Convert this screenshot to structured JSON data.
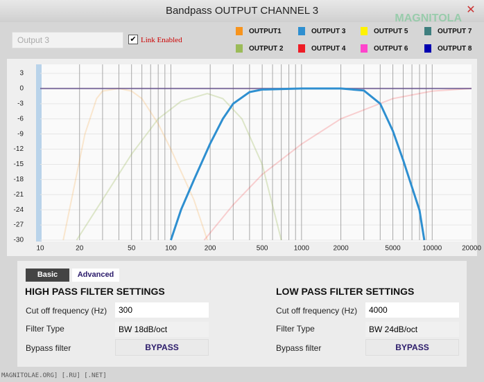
{
  "window": {
    "title": "Bandpass OUTPUT CHANNEL 3",
    "watermark": "MAGNITOLA",
    "footer": "MAGNITOLAE.ORG] [.RU] [.NET]"
  },
  "channel_name": "Output 3",
  "link": {
    "label": "Link Enabled",
    "checked": true
  },
  "chart_data": {
    "type": "line",
    "xscale": "log",
    "grid": true,
    "xlim": [
      10,
      20000
    ],
    "ylim": [
      -30,
      3
    ],
    "xticks": [
      10,
      20,
      50,
      100,
      200,
      500,
      1000,
      2000,
      5000,
      10000,
      20000
    ],
    "xgrid": [
      20,
      30,
      40,
      50,
      60,
      70,
      80,
      90,
      100,
      200,
      300,
      400,
      500,
      600,
      700,
      800,
      900,
      1000,
      2000,
      3000,
      4000,
      5000,
      6000,
      7000,
      8000,
      9000,
      10000
    ],
    "yticks": [
      3,
      0,
      -3,
      -6,
      -9,
      -12,
      -15,
      -18,
      -21,
      -24,
      -27,
      -30
    ],
    "series": [
      {
        "name": "OUTPUT1",
        "color": "#f7941d",
        "opacity": 0.2,
        "x": [
          15,
          18,
          22,
          27,
          30,
          40,
          50,
          60,
          80,
          100,
          150,
          190
        ],
        "values": [
          -30,
          -20,
          -9,
          -2,
          -0.5,
          0,
          -0.5,
          -2,
          -7,
          -12,
          -22,
          -30
        ]
      },
      {
        "name": "OUTPUT 2",
        "color": "#9bbb59",
        "opacity": 0.3,
        "x": [
          19,
          30,
          50,
          80,
          120,
          190,
          250,
          350,
          500,
          700
        ],
        "values": [
          -30,
          -22,
          -13,
          -6,
          -2.5,
          -1,
          -2,
          -6,
          -15,
          -30
        ]
      },
      {
        "name": "OUTPUT 3",
        "color": "#2e8fd0",
        "opacity": 1,
        "x": [
          100,
          120,
          150,
          200,
          250,
          300,
          400,
          500,
          1000,
          2000,
          3000,
          4000,
          5000,
          6000,
          7000,
          8000,
          8700
        ],
        "values": [
          -30,
          -23.9,
          -18.1,
          -10.9,
          -6,
          -3,
          -0.7,
          -0.2,
          0,
          0,
          -0.4,
          -3,
          -8.4,
          -14.2,
          -19.5,
          -24.1,
          -30
        ]
      },
      {
        "name": "OUTPUT 4",
        "color": "#ee1c25",
        "opacity": 0.2,
        "x": [
          180,
          300,
          500,
          1000,
          2000,
          5000,
          10000,
          20000
        ],
        "values": [
          -30,
          -23,
          -17,
          -11,
          -6,
          -2,
          -0.5,
          0
        ]
      },
      {
        "name": "OUTPUT 5",
        "color": "#fff200",
        "opacity": 0.3,
        "x": [
          10,
          20000
        ],
        "values": [
          0,
          0
        ]
      },
      {
        "name": "OUTPUT 6",
        "color": "#ff44cc",
        "opacity": 0.3,
        "x": [
          10,
          20000
        ],
        "values": [
          0,
          0
        ]
      },
      {
        "name": "OUTPUT 7",
        "color": "#3f7f7f",
        "opacity": 0.3,
        "x": [
          10,
          20000
        ],
        "values": [
          0,
          0
        ]
      },
      {
        "name": "OUTPUT 8",
        "color": "#0000b0",
        "opacity": 0.3,
        "x": [
          10,
          20000
        ],
        "values": [
          0,
          0
        ]
      }
    ]
  },
  "tabs": [
    "Basic",
    "Advanced"
  ],
  "high_pass": {
    "heading": "HIGH PASS FILTER SETTINGS",
    "cutoff_label": "Cut off frequency (Hz)",
    "cutoff": "300",
    "type_label": "Filter Type",
    "type": "BW 18dB/oct",
    "bypass_label": "Bypass filter",
    "bypass": "BYPASS"
  },
  "low_pass": {
    "heading": "LOW PASS FILTER SETTINGS",
    "cutoff_label": "Cut off frequency (Hz)",
    "cutoff": "4000",
    "type_label": "Filter Type",
    "type": "BW 24dB/oct",
    "bypass_label": "Bypass filter",
    "bypass": "BYPASS"
  }
}
